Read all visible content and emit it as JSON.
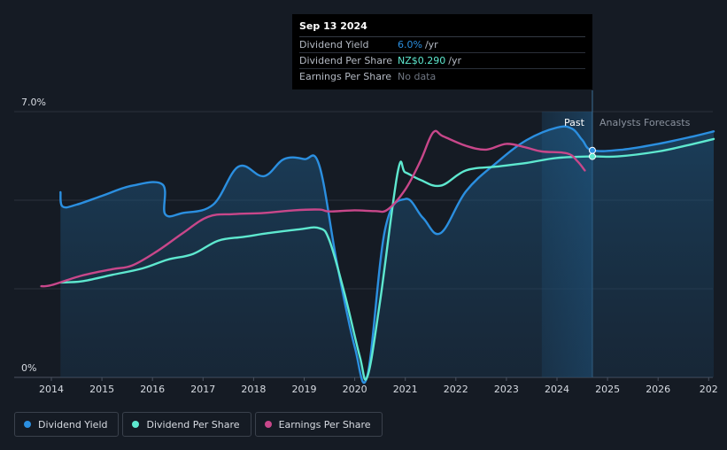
{
  "chart_data": {
    "type": "line",
    "y_unit": "%",
    "ylim": [
      0,
      7
    ],
    "y_ticks": [
      {
        "value": 7,
        "label": "7.0%"
      },
      {
        "value": 0,
        "label": "0%"
      }
    ],
    "x_ticks": [
      "2014",
      "2015",
      "2016",
      "2017",
      "2018",
      "2019",
      "2020",
      "2021",
      "2022",
      "2023",
      "2024",
      "2025",
      "2026",
      "202"
    ],
    "x_range": [
      2013.8,
      2027.1
    ],
    "forecast_start": 2024.7,
    "shade_start": 2023.7,
    "past_label": "Past",
    "forecast_label": "Analysts Forecasts",
    "series": [
      {
        "name": "Dividend Yield",
        "color": "#2b8fe0",
        "fill": true,
        "points": [
          [
            2014.18,
            4.88
          ],
          [
            2014.22,
            4.5
          ],
          [
            2014.5,
            4.55
          ],
          [
            2015.0,
            4.78
          ],
          [
            2015.6,
            5.05
          ],
          [
            2016.2,
            5.08
          ],
          [
            2016.25,
            4.3
          ],
          [
            2016.6,
            4.33
          ],
          [
            2017.2,
            4.55
          ],
          [
            2017.7,
            5.55
          ],
          [
            2018.2,
            5.3
          ],
          [
            2018.6,
            5.75
          ],
          [
            2019.0,
            5.75
          ],
          [
            2019.3,
            5.58
          ],
          [
            2019.65,
            3.0
          ],
          [
            2020.0,
            0.8
          ],
          [
            2020.25,
            0.05
          ],
          [
            2020.6,
            3.9
          ],
          [
            2021.0,
            4.7
          ],
          [
            2021.35,
            4.2
          ],
          [
            2021.7,
            3.8
          ],
          [
            2022.2,
            4.9
          ],
          [
            2022.8,
            5.65
          ],
          [
            2023.4,
            6.25
          ],
          [
            2024.0,
            6.58
          ],
          [
            2024.3,
            6.55
          ],
          [
            2024.5,
            6.25
          ],
          [
            2024.7,
            5.98
          ],
          [
            2025.3,
            6.0
          ],
          [
            2026.0,
            6.15
          ],
          [
            2026.7,
            6.35
          ],
          [
            2027.1,
            6.48
          ]
        ]
      },
      {
        "name": "Dividend Per Share",
        "color": "#5ee8cf",
        "fill": false,
        "points": [
          [
            2014.18,
            2.5
          ],
          [
            2014.6,
            2.53
          ],
          [
            2015.2,
            2.7
          ],
          [
            2015.8,
            2.87
          ],
          [
            2016.3,
            3.1
          ],
          [
            2016.8,
            3.25
          ],
          [
            2017.3,
            3.6
          ],
          [
            2017.8,
            3.7
          ],
          [
            2018.3,
            3.8
          ],
          [
            2018.9,
            3.9
          ],
          [
            2019.3,
            3.93
          ],
          [
            2019.5,
            3.6
          ],
          [
            2019.8,
            2.2
          ],
          [
            2020.1,
            0.55
          ],
          [
            2020.25,
            0.02
          ],
          [
            2020.5,
            2.0
          ],
          [
            2020.85,
            5.4
          ],
          [
            2021.0,
            5.4
          ],
          [
            2021.3,
            5.2
          ],
          [
            2021.7,
            5.05
          ],
          [
            2022.2,
            5.45
          ],
          [
            2022.8,
            5.55
          ],
          [
            2023.4,
            5.65
          ],
          [
            2024.0,
            5.78
          ],
          [
            2024.7,
            5.82
          ],
          [
            2025.2,
            5.82
          ],
          [
            2026.0,
            5.95
          ],
          [
            2026.7,
            6.15
          ],
          [
            2027.1,
            6.28
          ]
        ]
      },
      {
        "name": "Earnings Per Share",
        "color": "#c8478a",
        "fill": false,
        "points": [
          [
            2013.8,
            2.4
          ],
          [
            2014.0,
            2.43
          ],
          [
            2014.6,
            2.68
          ],
          [
            2015.2,
            2.85
          ],
          [
            2015.6,
            2.95
          ],
          [
            2016.1,
            3.33
          ],
          [
            2016.6,
            3.8
          ],
          [
            2017.1,
            4.23
          ],
          [
            2017.6,
            4.3
          ],
          [
            2018.2,
            4.33
          ],
          [
            2018.8,
            4.4
          ],
          [
            2019.3,
            4.42
          ],
          [
            2019.5,
            4.37
          ],
          [
            2020.0,
            4.4
          ],
          [
            2020.4,
            4.38
          ],
          [
            2020.65,
            4.42
          ],
          [
            2021.0,
            4.95
          ],
          [
            2021.3,
            5.7
          ],
          [
            2021.55,
            6.45
          ],
          [
            2021.75,
            6.35
          ],
          [
            2022.2,
            6.1
          ],
          [
            2022.6,
            6.0
          ],
          [
            2023.0,
            6.15
          ],
          [
            2023.4,
            6.05
          ],
          [
            2023.7,
            5.95
          ],
          [
            2024.2,
            5.9
          ],
          [
            2024.4,
            5.7
          ],
          [
            2024.55,
            5.45
          ]
        ]
      }
    ],
    "markers": [
      {
        "series": "Dividend Yield",
        "x": 2024.7,
        "y": 5.98
      },
      {
        "series": "Dividend Per Share",
        "x": 2024.7,
        "y": 5.82
      }
    ]
  },
  "tooltip": {
    "date": "Sep 13 2024",
    "rows": [
      {
        "label": "Dividend Yield",
        "value": "6.0%",
        "unit": "/yr",
        "color": "#2b8fe0"
      },
      {
        "label": "Dividend Per Share",
        "value": "NZ$0.290",
        "unit": "/yr",
        "color": "#5ee8cf"
      },
      {
        "label": "Earnings Per Share",
        "nodata": "No data"
      }
    ]
  },
  "legend": [
    {
      "label": "Dividend Yield",
      "color": "#2b8fe0"
    },
    {
      "label": "Dividend Per Share",
      "color": "#5ee8cf"
    },
    {
      "label": "Earnings Per Share",
      "color": "#c8478a"
    }
  ]
}
